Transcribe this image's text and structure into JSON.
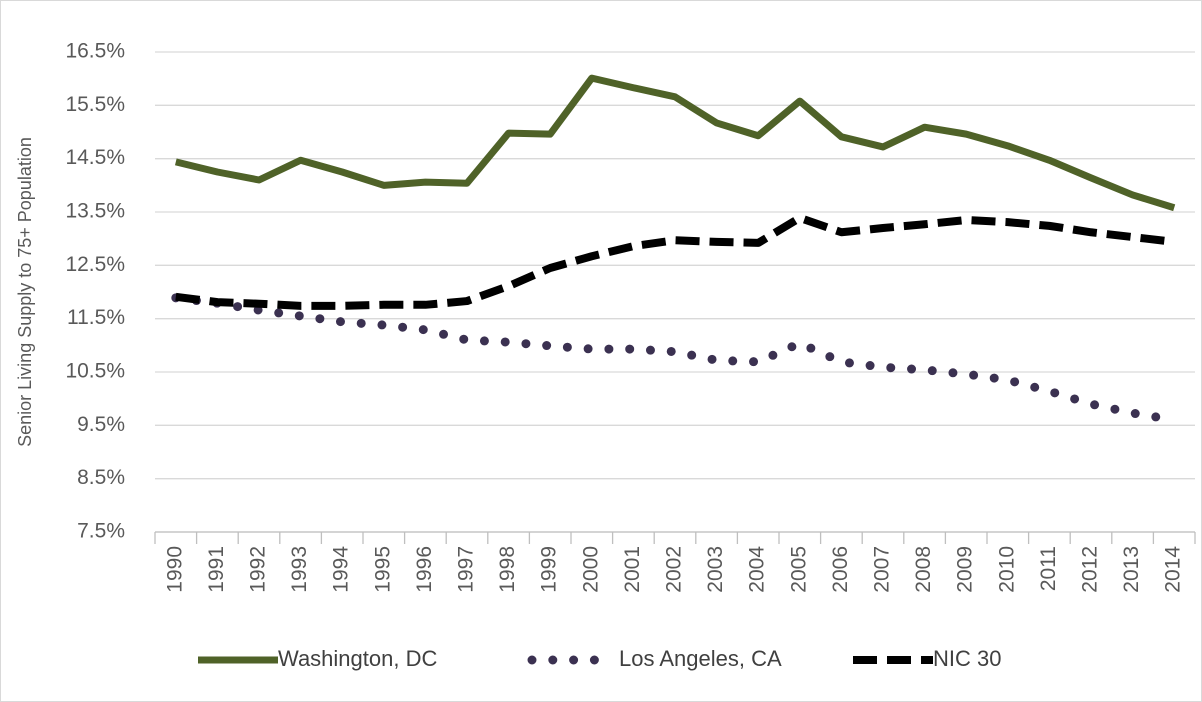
{
  "chart_data": {
    "type": "line",
    "y_label": "Senior Living Supply to 75+ Population",
    "categories": [
      "1990",
      "1991",
      "1992",
      "1993",
      "1994",
      "1995",
      "1996",
      "1997",
      "1998",
      "1999",
      "2000",
      "2001",
      "2002",
      "2003",
      "2004",
      "2005",
      "2006",
      "2007",
      "2008",
      "2009",
      "2010",
      "2011",
      "2012",
      "2013",
      "2014"
    ],
    "series": [
      {
        "name": "Washington, DC",
        "color": "#4f6228",
        "values": [
          14.44,
          14.25,
          14.1,
          14.47,
          14.25,
          14.0,
          14.06,
          14.04,
          14.98,
          14.96,
          16.01,
          15.83,
          15.66,
          15.17,
          14.93,
          15.58,
          14.91,
          14.72,
          15.09,
          14.96,
          14.74,
          14.47,
          14.14,
          13.82,
          13.58
        ]
      },
      {
        "name": "Los Angeles, CA",
        "color": "#3b3151",
        "values": [
          11.89,
          11.79,
          11.66,
          11.55,
          11.44,
          11.38,
          11.29,
          11.1,
          11.06,
          10.99,
          10.93,
          10.93,
          10.88,
          10.72,
          10.69,
          11.04,
          10.69,
          10.59,
          10.54,
          10.46,
          10.35,
          10.14,
          9.9,
          9.73,
          9.6
        ]
      },
      {
        "name": "NIC 30",
        "color": "#000000",
        "values": [
          11.91,
          11.81,
          11.78,
          11.74,
          11.74,
          11.76,
          11.76,
          11.83,
          12.11,
          12.45,
          12.67,
          12.86,
          12.97,
          12.94,
          12.92,
          13.39,
          13.12,
          13.2,
          13.27,
          13.35,
          13.31,
          13.24,
          13.12,
          13.03,
          12.94
        ]
      }
    ],
    "ylim": [
      7.5,
      16.5
    ],
    "yticks": [
      {
        "value": 7.5,
        "label": "7.5%"
      },
      {
        "value": 8.5,
        "label": "8.5%"
      },
      {
        "value": 9.5,
        "label": "9.5%"
      },
      {
        "value": 10.5,
        "label": "10.5%"
      },
      {
        "value": 11.5,
        "label": "11.5%"
      },
      {
        "value": 12.5,
        "label": "12.5%"
      },
      {
        "value": 13.5,
        "label": "13.5%"
      },
      {
        "value": 14.5,
        "label": "14.5%"
      },
      {
        "value": 15.5,
        "label": "15.5%"
      },
      {
        "value": 16.5,
        "label": "16.5%"
      }
    ],
    "grid": true,
    "legend": "bottom"
  }
}
